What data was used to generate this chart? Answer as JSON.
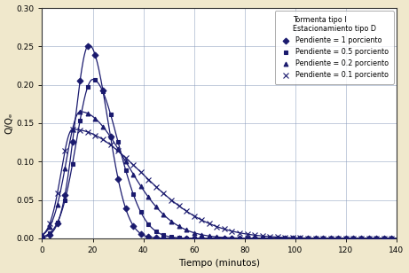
{
  "title_line1": "Tormenta tipo I",
  "title_line2": "Estacionamiento tipo D",
  "xlabel": "Tiempo (minutos)",
  "ylabel": "Q/Qₑ",
  "xlim": [
    0,
    140
  ],
  "ylim": [
    0,
    0.3
  ],
  "yticks": [
    0,
    0.05,
    0.1,
    0.15,
    0.2,
    0.25,
    0.3
  ],
  "xticks": [
    0,
    20,
    40,
    60,
    80,
    100,
    120,
    140
  ],
  "bg_color": "#F0E8CC",
  "plot_bg_color": "#FFFFFF",
  "line_color": "#1a1a6e",
  "grid_color": "#8899BB",
  "legend_labels": [
    "Pendiente = 1 porciento",
    "Pendiente = 0.5 porciento",
    "Pendiente = 0.2 porciento",
    "Pendiente = 0.1 porciento"
  ],
  "markers": [
    "D",
    "s",
    "^",
    "x"
  ],
  "curve_params": [
    {
      "peak_t": 18.5,
      "peak_q": 0.252,
      "sigma_rise": 5.5,
      "sigma_fall": 7.5,
      "marker": "D",
      "label_idx": 0
    },
    {
      "peak_t": 20.0,
      "peak_q": 0.207,
      "sigma_rise": 6.5,
      "sigma_fall": 10.0,
      "marker": "s",
      "label_idx": 1
    },
    {
      "peak_t": 15.0,
      "peak_q": 0.165,
      "sigma_rise": 5.5,
      "sigma_fall": 18.0,
      "marker": "^",
      "label_idx": 2
    },
    {
      "peak_t": 12.0,
      "peak_q": 0.142,
      "sigma_rise": 4.5,
      "sigma_fall": 27.0,
      "marker": "x",
      "label_idx": 3
    }
  ]
}
